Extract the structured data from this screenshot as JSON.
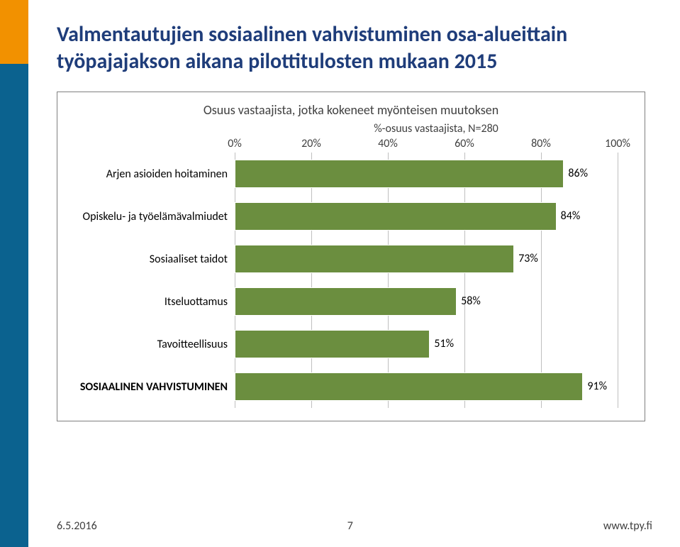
{
  "title_line1": "Valmentautujien sosiaalinen vahvistuminen osa-alueittain",
  "title_line2": "työpajajakson aikana pilottitulosten mukaan 2015",
  "chart": {
    "type": "bar",
    "title": "Osuus vastaajista, jotka kokeneet myönteisen muutoksen",
    "axis_title": "%-osuus vastaajista, N=280",
    "xlim": [
      0,
      100
    ],
    "xtick_step": 20,
    "xtick_labels": [
      "0%",
      "20%",
      "40%",
      "60%",
      "80%",
      "100%"
    ],
    "bar_color": "#6b8e3f",
    "grid_color": "#bfbfbf",
    "background_color": "#ffffff",
    "title_fontsize": 18,
    "label_fontsize": 16,
    "categories": [
      {
        "label": "Arjen asioiden hoitaminen",
        "value": 86,
        "value_label": "86%",
        "bold": false
      },
      {
        "label": "Opiskelu- ja työelämävalmiudet",
        "value": 84,
        "value_label": "84%",
        "bold": false
      },
      {
        "label": "Sosiaaliset taidot",
        "value": 73,
        "value_label": "73%",
        "bold": false
      },
      {
        "label": "Itseluottamus",
        "value": 58,
        "value_label": "58%",
        "bold": false
      },
      {
        "label": "Tavoitteellisuus",
        "value": 51,
        "value_label": "51%",
        "bold": false
      },
      {
        "label": "SOSIAALINEN VAHVISTUMINEN",
        "value": 91,
        "value_label": "91%",
        "bold": true
      }
    ]
  },
  "footer": {
    "date": "6.5.2016",
    "page": "7",
    "url": "www.tpy.fi"
  },
  "stripe": {
    "top_color": "#f29100",
    "bottom_color": "#0b628f"
  }
}
